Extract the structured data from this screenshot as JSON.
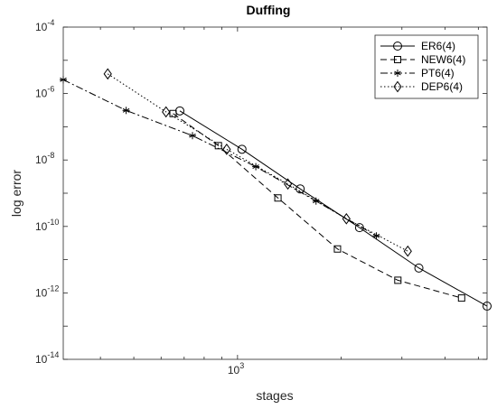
{
  "chart_data": {
    "type": "line",
    "title": "Duffing",
    "xlabel": "stages",
    "ylabel": "log error",
    "xscale": "log",
    "yscale": "log",
    "xlim": [
      312,
      5300
    ],
    "ylim": [
      1e-14,
      0.0001
    ],
    "x_tick_labels": [
      {
        "value": 1000,
        "base": "10",
        "exp": "3"
      }
    ],
    "y_tick_labels": [
      {
        "value": 0.0001,
        "base": "10",
        "exp": "-4"
      },
      {
        "value": 1e-06,
        "base": "10",
        "exp": "-6"
      },
      {
        "value": 1e-08,
        "base": "10",
        "exp": "-8"
      },
      {
        "value": 1e-10,
        "base": "10",
        "exp": "-10"
      },
      {
        "value": 1e-12,
        "base": "10",
        "exp": "-12"
      },
      {
        "value": 1e-14,
        "base": "10",
        "exp": "-14"
      }
    ],
    "grid": false,
    "box": true,
    "legend_position": "top-right",
    "series": [
      {
        "name": "ER6(4)",
        "marker": "circle",
        "dash": "solid",
        "color": "#000000",
        "x": [
          680,
          1030,
          1520,
          2260,
          3360,
          5300
        ],
        "y": [
          3e-07,
          2.1e-08,
          1.35e-09,
          9.2e-11,
          5.6e-12,
          4e-13
        ]
      },
      {
        "name": "NEW6(4)",
        "marker": "square",
        "dash": "dashed",
        "color": "#000000",
        "x": [
          650,
          880,
          1310,
          1950,
          2920,
          4470
        ],
        "y": [
          2.5e-07,
          2.7e-08,
          7.2e-10,
          2.1e-11,
          2.4e-12,
          7e-13
        ]
      },
      {
        "name": "PT6(4)",
        "marker": "asterisk",
        "dash": "dashdot",
        "color": "#000000",
        "x": [
          312,
          475,
          740,
          1130,
          1690,
          2530
        ],
        "y": [
          2.6e-06,
          3.1e-07,
          5.4e-08,
          6.3e-09,
          5.8e-10,
          5.2e-11
        ]
      },
      {
        "name": "DEP6(4)",
        "marker": "diamond",
        "dash": "dotted",
        "color": "#000000",
        "x": [
          420,
          620,
          930,
          1400,
          2070,
          3120
        ],
        "y": [
          3.9e-06,
          2.8e-07,
          2.1e-08,
          1.9e-09,
          1.7e-10,
          1.8e-11
        ]
      }
    ]
  }
}
